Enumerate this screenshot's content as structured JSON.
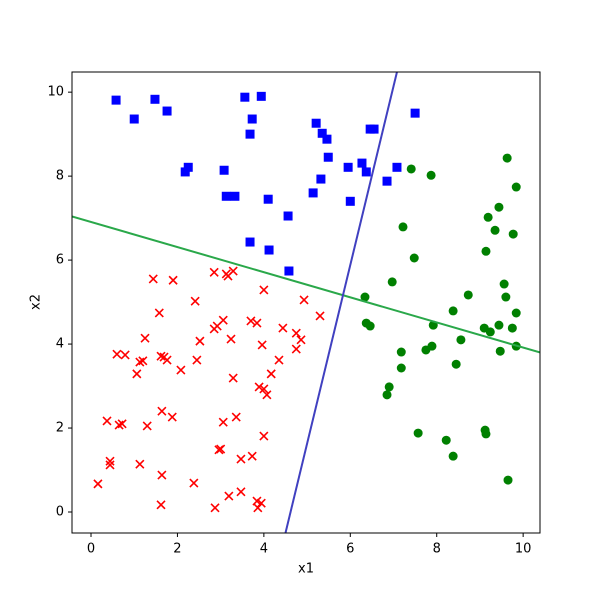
{
  "chart_data": {
    "type": "scatter",
    "xlabel": "x1",
    "ylabel": "x2",
    "xlim": [
      -0.44,
      10.39
    ],
    "ylim": [
      -0.5,
      10.48
    ],
    "xticks": [
      0,
      2,
      4,
      6,
      8,
      10
    ],
    "yticks": [
      0,
      2,
      4,
      6,
      8,
      10
    ],
    "series": [
      {
        "marker": "square",
        "color": "#0000ff",
        "x": [
          0.58,
          1.0,
          1.48,
          1.76,
          2.18,
          2.25,
          3.08,
          3.13,
          3.33,
          3.56,
          3.94,
          3.73,
          3.68,
          4.1,
          3.68,
          4.12,
          4.56,
          4.58,
          5.21,
          5.35,
          5.46,
          5.49,
          5.14,
          5.32,
          5.95,
          6.0,
          6.27,
          6.37,
          6.46,
          6.55,
          7.08,
          6.85,
          7.5
        ],
        "values": [
          9.81,
          9.36,
          9.83,
          9.55,
          8.1,
          8.21,
          8.14,
          7.52,
          7.52,
          9.88,
          9.9,
          9.36,
          9.0,
          7.45,
          6.43,
          6.24,
          7.05,
          5.74,
          9.26,
          9.02,
          8.88,
          8.45,
          7.6,
          7.93,
          8.21,
          7.4,
          8.31,
          8.1,
          9.12,
          9.12,
          8.21,
          7.88,
          9.5
        ]
      },
      {
        "marker": "circle",
        "color": "#008000",
        "x": [
          7.41,
          7.87,
          9.63,
          9.84,
          9.44,
          9.19,
          9.35,
          9.77,
          7.22,
          7.48,
          9.14,
          6.97,
          9.56,
          8.73,
          9.6,
          6.34,
          8.38,
          9.84,
          6.37,
          6.46,
          7.92,
          9.1,
          9.24,
          9.44,
          9.75,
          8.56,
          7.89,
          7.75,
          7.18,
          9.47,
          9.84,
          8.45,
          7.18,
          6.9,
          6.85,
          7.57,
          8.22,
          9.12,
          9.14,
          8.38,
          9.65
        ],
        "values": [
          8.17,
          8.02,
          8.43,
          7.74,
          7.26,
          7.02,
          6.71,
          6.62,
          6.79,
          6.05,
          6.21,
          5.48,
          5.43,
          5.17,
          5.12,
          5.12,
          4.79,
          4.74,
          4.5,
          4.43,
          4.45,
          4.38,
          4.29,
          4.45,
          4.38,
          4.1,
          3.95,
          3.86,
          3.81,
          3.83,
          3.95,
          3.52,
          3.43,
          2.98,
          2.79,
          1.88,
          1.71,
          1.95,
          1.86,
          1.33,
          0.76
        ]
      },
      {
        "marker": "x",
        "color": "#ff0000",
        "x": [
          1.44,
          1.9,
          2.85,
          3.13,
          3.29,
          3.17,
          4.0,
          2.41,
          4.93,
          1.58,
          5.3,
          3.06,
          2.92,
          2.85,
          3.7,
          3.84,
          4.44,
          4.75,
          4.86,
          1.25,
          2.52,
          3.24,
          3.96,
          4.75,
          0.6,
          0.79,
          1.62,
          1.76,
          1.69,
          1.2,
          1.13,
          2.45,
          2.08,
          1.06,
          4.35,
          4.17,
          3.29,
          3.89,
          4.0,
          4.07,
          0.37,
          0.65,
          0.72,
          1.3,
          1.64,
          1.88,
          3.06,
          3.36,
          4.0,
          2.96,
          3.0,
          3.73,
          3.47,
          0.44,
          0.44,
          1.13,
          1.64,
          0.16,
          2.38,
          3.47,
          3.19,
          3.84,
          3.94,
          3.86,
          2.87,
          1.62
        ],
        "values": [
          5.55,
          5.52,
          5.71,
          5.67,
          5.74,
          5.62,
          5.29,
          5.02,
          5.05,
          4.74,
          4.67,
          4.57,
          4.43,
          4.36,
          4.55,
          4.5,
          4.38,
          4.26,
          4.1,
          4.14,
          4.07,
          4.12,
          3.98,
          3.88,
          3.76,
          3.74,
          3.71,
          3.62,
          3.69,
          3.6,
          3.57,
          3.62,
          3.38,
          3.29,
          3.62,
          3.29,
          3.19,
          2.98,
          2.93,
          2.79,
          2.17,
          2.07,
          2.1,
          2.05,
          2.4,
          2.26,
          2.14,
          2.26,
          1.81,
          1.48,
          1.5,
          1.33,
          1.26,
          1.21,
          1.12,
          1.14,
          0.88,
          0.67,
          0.69,
          0.48,
          0.38,
          0.26,
          0.21,
          0.1,
          0.1,
          0.17
        ]
      },
      {
        "marker": "line",
        "color": "#2aa84a",
        "x": [
          -0.44,
          10.39
        ],
        "values": [
          7.04,
          3.8
        ]
      },
      {
        "marker": "line",
        "color": "#4040c0",
        "x": [
          4.5,
          7.08
        ],
        "values": [
          -0.5,
          10.48
        ]
      }
    ]
  }
}
